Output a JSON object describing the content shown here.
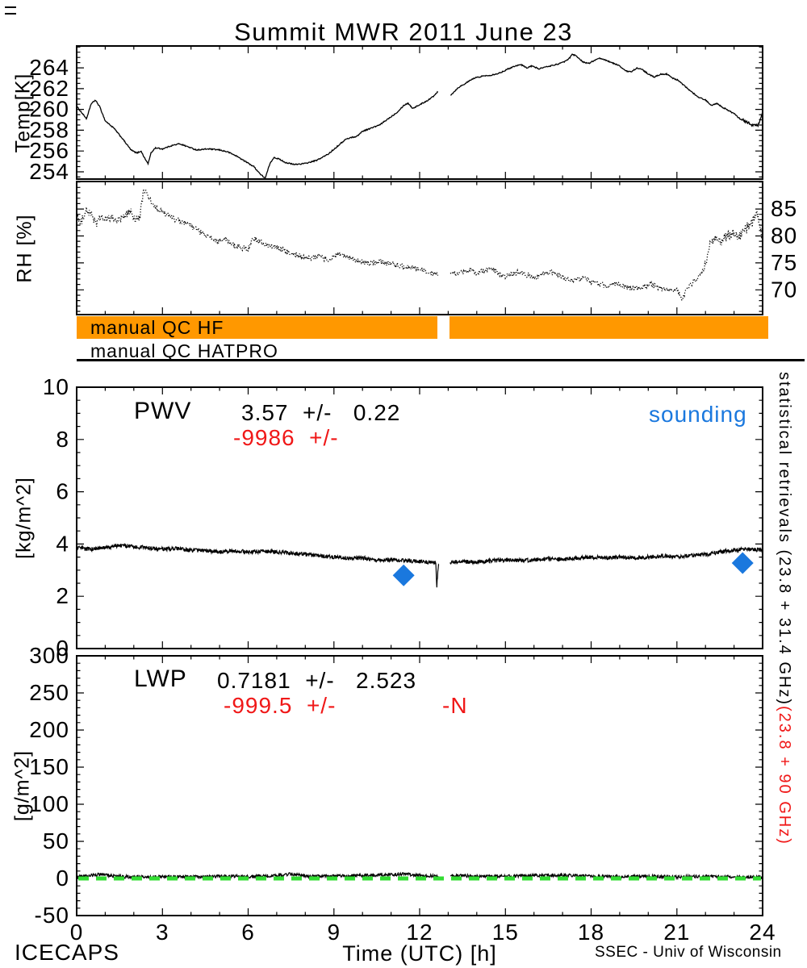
{
  "title": "Summit MWR 2011 June 23",
  "footer": {
    "left": "ICECAPS",
    "right": "SSEC - Univ of Wisconsin"
  },
  "colors": {
    "orange": "#FF9800",
    "red": "#F01818",
    "blue": "#1A78DE",
    "green": "#33DD33",
    "black": "#000000"
  },
  "qc": {
    "hf_label": "manual QC HF",
    "hatpro_label": "manual QC HATPRO",
    "gap_hours": [
      12.62,
      13.05
    ]
  },
  "annotations": {
    "pwv": {
      "name": "PWV",
      "stat_black": "3.57  +/-   0.22",
      "stat_red": "-9986  +/-",
      "sounding_label": "sounding"
    },
    "lwp": {
      "name": "LWP",
      "stat_black": "0.7181  +/-   2.523",
      "stat_red": "-999.5  +/-",
      "stat_red2": "-N"
    }
  },
  "right_label": {
    "black": "statistical retrievals (23.8 + 31.4 GHz)",
    "red": "(23.8 + 90 GHz)"
  },
  "xaxis": {
    "label": "Time (UTC) [h]",
    "ticks": [
      0,
      3,
      6,
      9,
      12,
      15,
      18,
      21,
      24
    ],
    "range": [
      0,
      24
    ],
    "minor_step_hours": 1
  },
  "chart_data": [
    {
      "type": "line",
      "name": "temperature",
      "ylabel": "Temp[K]",
      "yticks": [
        254,
        256,
        258,
        260,
        262,
        264
      ],
      "ylim": [
        253.3,
        266.1
      ],
      "style": "solid",
      "gaps": [
        [
          12.65,
          13.07
        ]
      ],
      "points": [
        [
          0,
          260.3
        ],
        [
          0.2,
          259.6
        ],
        [
          0.35,
          259.1
        ],
        [
          0.5,
          260.5
        ],
        [
          0.65,
          260.9
        ],
        [
          0.8,
          260.3
        ],
        [
          1,
          258.9
        ],
        [
          1.3,
          258.2
        ],
        [
          1.6,
          257.2
        ],
        [
          1.9,
          256.1
        ],
        [
          2.1,
          255.8
        ],
        [
          2.25,
          256.0
        ],
        [
          2.4,
          255.2
        ],
        [
          2.5,
          254.8
        ],
        [
          2.6,
          255.8
        ],
        [
          2.75,
          256.3
        ],
        [
          3,
          256.2
        ],
        [
          3.3,
          256.5
        ],
        [
          3.6,
          256.7
        ],
        [
          3.9,
          256.4
        ],
        [
          4.2,
          256.1
        ],
        [
          4.6,
          256.2
        ],
        [
          5,
          256.1
        ],
        [
          5.3,
          255.9
        ],
        [
          5.6,
          255.5
        ],
        [
          5.9,
          255.0
        ],
        [
          6.2,
          254.5
        ],
        [
          6.45,
          253.7
        ],
        [
          6.6,
          253.4
        ],
        [
          6.75,
          254.7
        ],
        [
          6.9,
          255.4
        ],
        [
          7.1,
          255.2
        ],
        [
          7.3,
          254.9
        ],
        [
          7.6,
          254.7
        ],
        [
          8,
          254.8
        ],
        [
          8.4,
          255.1
        ],
        [
          8.8,
          255.7
        ],
        [
          9.1,
          256.4
        ],
        [
          9.4,
          257.1
        ],
        [
          9.6,
          257.3
        ],
        [
          9.8,
          257.4
        ],
        [
          10,
          257.9
        ],
        [
          10.3,
          258.2
        ],
        [
          10.6,
          258.5
        ],
        [
          10.9,
          259.1
        ],
        [
          11.2,
          259.7
        ],
        [
          11.45,
          260.4
        ],
        [
          11.6,
          260.6
        ],
        [
          11.75,
          260.1
        ],
        [
          11.9,
          260.3
        ],
        [
          12.1,
          260.6
        ],
        [
          12.3,
          260.9
        ],
        [
          12.5,
          261.3
        ],
        [
          12.62,
          261.7
        ],
        [
          13.1,
          261.4
        ],
        [
          13.35,
          262.1
        ],
        [
          13.6,
          262.5
        ],
        [
          13.9,
          263.0
        ],
        [
          14.2,
          263.2
        ],
        [
          14.5,
          263.3
        ],
        [
          14.8,
          263.5
        ],
        [
          15.1,
          263.9
        ],
        [
          15.35,
          264.2
        ],
        [
          15.55,
          264.3
        ],
        [
          15.75,
          264.0
        ],
        [
          15.95,
          264.2
        ],
        [
          16.15,
          263.9
        ],
        [
          16.45,
          264.1
        ],
        [
          16.75,
          264.3
        ],
        [
          17,
          264.5
        ],
        [
          17.2,
          264.8
        ],
        [
          17.35,
          265.3
        ],
        [
          17.5,
          265.1
        ],
        [
          17.7,
          264.6
        ],
        [
          17.9,
          264.4
        ],
        [
          18.1,
          264.7
        ],
        [
          18.3,
          264.9
        ],
        [
          18.55,
          264.7
        ],
        [
          18.8,
          264.4
        ],
        [
          19,
          264.2
        ],
        [
          19.2,
          263.7
        ],
        [
          19.4,
          263.6
        ],
        [
          19.6,
          264.0
        ],
        [
          19.8,
          263.8
        ],
        [
          20,
          263.4
        ],
        [
          20.2,
          263.1
        ],
        [
          20.45,
          263.4
        ],
        [
          20.65,
          263.4
        ],
        [
          20.85,
          263.0
        ],
        [
          21.05,
          262.8
        ],
        [
          21.25,
          262.3
        ],
        [
          21.5,
          261.7
        ],
        [
          21.75,
          261.2
        ],
        [
          22,
          260.9
        ],
        [
          22.2,
          260.4
        ],
        [
          22.4,
          260.6
        ],
        [
          22.6,
          260.2
        ],
        [
          22.8,
          259.9
        ],
        [
          23,
          259.6
        ],
        [
          23.2,
          259.1
        ],
        [
          23.45,
          258.8
        ],
        [
          23.65,
          258.5
        ],
        [
          23.85,
          258.5
        ],
        [
          23.95,
          259.2
        ],
        [
          24,
          259.9
        ]
      ]
    },
    {
      "type": "line",
      "name": "relative_humidity",
      "ylabel": "RH [%]",
      "yticks": [
        70,
        75,
        80,
        85
      ],
      "ylim": [
        65.4,
        90.1
      ],
      "style": "dotted",
      "gaps": [
        [
          12.65,
          13.07
        ]
      ],
      "points": [
        [
          0,
          84.5
        ],
        [
          0.12,
          81.8
        ],
        [
          0.3,
          84.8
        ],
        [
          0.5,
          84.0
        ],
        [
          0.7,
          82.3
        ],
        [
          0.85,
          83.6
        ],
        [
          1,
          82.9
        ],
        [
          1.2,
          83.4
        ],
        [
          1.45,
          82.9
        ],
        [
          1.7,
          83.6
        ],
        [
          1.85,
          84.8
        ],
        [
          2,
          83.4
        ],
        [
          2.2,
          83.1
        ],
        [
          2.35,
          88.8
        ],
        [
          2.5,
          87.2
        ],
        [
          2.7,
          85.4
        ],
        [
          2.9,
          84.7
        ],
        [
          3.1,
          84.1
        ],
        [
          3.35,
          83.4
        ],
        [
          3.6,
          82.7
        ],
        [
          3.9,
          82.1
        ],
        [
          4.2,
          81.2
        ],
        [
          4.5,
          80.1
        ],
        [
          4.8,
          79.4
        ],
        [
          5,
          79.0
        ],
        [
          5.2,
          79.4
        ],
        [
          5.45,
          78.4
        ],
        [
          5.7,
          77.9
        ],
        [
          6,
          77.5
        ],
        [
          6.15,
          79.6
        ],
        [
          6.35,
          79.1
        ],
        [
          6.6,
          78.5
        ],
        [
          6.9,
          78.0
        ],
        [
          7.2,
          77.4
        ],
        [
          7.5,
          76.9
        ],
        [
          7.8,
          76.3
        ],
        [
          8.05,
          75.8
        ],
        [
          8.3,
          76.0
        ],
        [
          8.5,
          76.4
        ],
        [
          8.75,
          75.5
        ],
        [
          9,
          76.1
        ],
        [
          9.2,
          76.6
        ],
        [
          9.45,
          76.1
        ],
        [
          9.7,
          75.6
        ],
        [
          10,
          75.2
        ],
        [
          10.3,
          74.8
        ],
        [
          10.6,
          75.3
        ],
        [
          10.9,
          74.9
        ],
        [
          11.2,
          74.6
        ],
        [
          11.5,
          74.3
        ],
        [
          11.8,
          74.2
        ],
        [
          12.05,
          73.7
        ],
        [
          12.3,
          73.2
        ],
        [
          12.62,
          72.9
        ],
        [
          13.1,
          73.4
        ],
        [
          13.3,
          72.9
        ],
        [
          13.55,
          73.3
        ],
        [
          13.8,
          73.6
        ],
        [
          14,
          73.0
        ],
        [
          14.25,
          73.5
        ],
        [
          14.5,
          73.9
        ],
        [
          14.8,
          73.0
        ],
        [
          15,
          72.5
        ],
        [
          15.25,
          72.9
        ],
        [
          15.5,
          73.3
        ],
        [
          15.8,
          72.7
        ],
        [
          16.05,
          72.3
        ],
        [
          16.3,
          73.0
        ],
        [
          16.6,
          73.3
        ],
        [
          16.9,
          72.5
        ],
        [
          17.2,
          72.0
        ],
        [
          17.5,
          71.8
        ],
        [
          17.75,
          72.2
        ],
        [
          18,
          71.5
        ],
        [
          18.3,
          71.0
        ],
        [
          18.6,
          70.7
        ],
        [
          18.9,
          71.3
        ],
        [
          19.2,
          70.5
        ],
        [
          19.5,
          70.1
        ],
        [
          19.8,
          70.6
        ],
        [
          20.1,
          71.0
        ],
        [
          20.4,
          70.3
        ],
        [
          20.7,
          70.0
        ],
        [
          21,
          69.8
        ],
        [
          21.2,
          68.4
        ],
        [
          21.4,
          70.6
        ],
        [
          21.6,
          71.6
        ],
        [
          21.8,
          72.6
        ],
        [
          22,
          74.8
        ],
        [
          22.15,
          78.6
        ],
        [
          22.35,
          79.6
        ],
        [
          22.55,
          78.8
        ],
        [
          22.75,
          80.0
        ],
        [
          22.95,
          80.6
        ],
        [
          23.15,
          79.8
        ],
        [
          23.35,
          81.0
        ],
        [
          23.6,
          82.2
        ],
        [
          23.8,
          84.2
        ],
        [
          23.9,
          82.4
        ],
        [
          24,
          78.8
        ]
      ]
    },
    {
      "type": "line",
      "name": "pwv",
      "ylabel": "[kg/m^2]",
      "yticks": [
        0,
        2,
        4,
        6,
        8,
        10
      ],
      "ylim": [
        0,
        10
      ],
      "style": "noisy-solid",
      "gaps": [
        [
          12.68,
          13.06
        ]
      ],
      "mean_text": "3.57 +/- 0.22",
      "points": [
        [
          0,
          3.85
        ],
        [
          0.5,
          3.8
        ],
        [
          1,
          3.85
        ],
        [
          1.5,
          3.95
        ],
        [
          2,
          3.9
        ],
        [
          2.5,
          3.85
        ],
        [
          3,
          3.8
        ],
        [
          3.5,
          3.82
        ],
        [
          4,
          3.76
        ],
        [
          4.5,
          3.75
        ],
        [
          5,
          3.7
        ],
        [
          5.5,
          3.74
        ],
        [
          6,
          3.7
        ],
        [
          6.5,
          3.72
        ],
        [
          7,
          3.7
        ],
        [
          7.5,
          3.66
        ],
        [
          8,
          3.6
        ],
        [
          8.5,
          3.55
        ],
        [
          9,
          3.5
        ],
        [
          9.5,
          3.46
        ],
        [
          10,
          3.46
        ],
        [
          10.5,
          3.4
        ],
        [
          11,
          3.4
        ],
        [
          11.5,
          3.36
        ],
        [
          12,
          3.34
        ],
        [
          12.3,
          3.3
        ],
        [
          12.5,
          3.28
        ],
        [
          12.56,
          3.3
        ],
        [
          12.6,
          2.4
        ],
        [
          12.66,
          3.25
        ],
        [
          13.1,
          3.3
        ],
        [
          13.5,
          3.34
        ],
        [
          14,
          3.3
        ],
        [
          14.5,
          3.36
        ],
        [
          15,
          3.4
        ],
        [
          15.5,
          3.36
        ],
        [
          16,
          3.4
        ],
        [
          16.5,
          3.44
        ],
        [
          17,
          3.4
        ],
        [
          17.5,
          3.46
        ],
        [
          18,
          3.5
        ],
        [
          18.5,
          3.46
        ],
        [
          19,
          3.5
        ],
        [
          19.5,
          3.46
        ],
        [
          20,
          3.5
        ],
        [
          20.5,
          3.56
        ],
        [
          21,
          3.5
        ],
        [
          21.5,
          3.56
        ],
        [
          22,
          3.6
        ],
        [
          22.5,
          3.7
        ],
        [
          23,
          3.76
        ],
        [
          23.5,
          3.82
        ],
        [
          24,
          3.76
        ]
      ],
      "sounding_points": [
        [
          11.44,
          2.8
        ],
        [
          23.3,
          3.27
        ]
      ]
    },
    {
      "type": "line",
      "name": "lwp",
      "ylabel": "[g/m^2]",
      "yticks": [
        -50,
        0,
        50,
        100,
        150,
        200,
        250,
        300
      ],
      "ylim": [
        -50,
        300
      ],
      "style": "noisy-solid",
      "gaps": [
        [
          12.65,
          13.07
        ]
      ],
      "mean_text": "0.7181 +/- 2.523",
      "zero_line": 0,
      "points": [
        [
          0,
          2
        ],
        [
          0.5,
          4
        ],
        [
          0.9,
          6
        ],
        [
          1.3,
          3
        ],
        [
          2,
          2
        ],
        [
          3,
          2.5
        ],
        [
          4,
          2
        ],
        [
          5,
          3
        ],
        [
          6,
          2.5
        ],
        [
          7,
          4
        ],
        [
          7.5,
          6
        ],
        [
          8,
          3
        ],
        [
          9,
          3
        ],
        [
          10,
          4
        ],
        [
          11,
          5
        ],
        [
          11.5,
          6
        ],
        [
          12,
          4
        ],
        [
          12.6,
          3
        ],
        [
          13.1,
          4
        ],
        [
          14,
          3
        ],
        [
          15,
          3
        ],
        [
          16,
          4
        ],
        [
          17,
          4.5
        ],
        [
          18,
          3
        ],
        [
          19,
          2.5
        ],
        [
          20,
          3
        ],
        [
          21,
          2
        ],
        [
          22,
          3
        ],
        [
          23,
          2
        ],
        [
          24,
          2
        ]
      ]
    }
  ]
}
